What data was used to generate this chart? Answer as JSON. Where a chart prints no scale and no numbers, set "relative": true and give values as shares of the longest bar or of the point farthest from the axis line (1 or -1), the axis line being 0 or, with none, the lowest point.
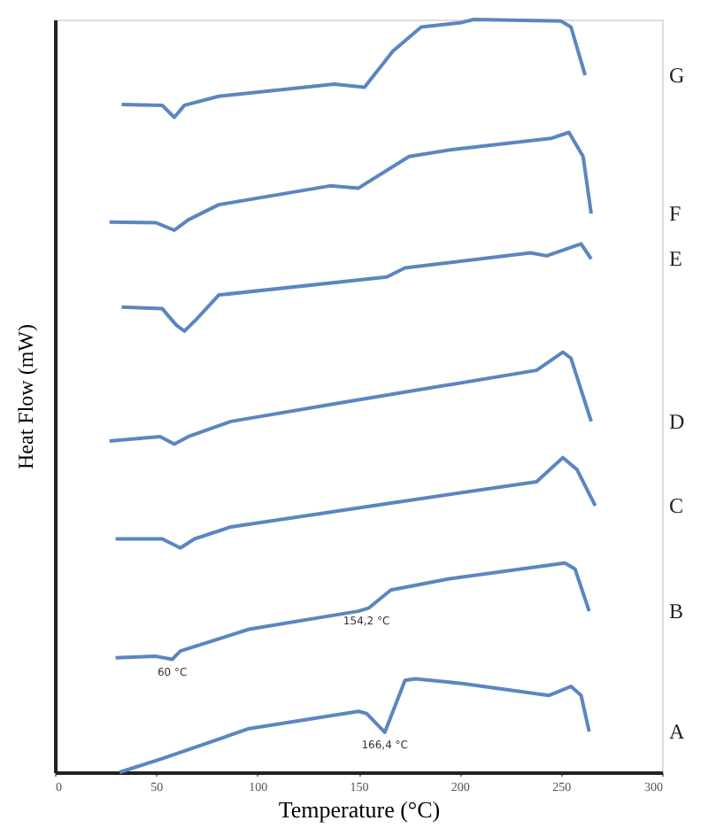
{
  "chart_data": {
    "type": "line",
    "relative": true,
    "xlabel": "Temperature (°C)",
    "ylabel": "Heat Flow (mW)",
    "xlim": [
      0,
      300
    ],
    "xticks": [
      0,
      50,
      100,
      150,
      200,
      250,
      300
    ],
    "tick_labels": "x",
    "grid": false,
    "legend": false,
    "marker": "none",
    "line_style": "solid",
    "series": [
      {
        "name": "G",
        "color": "#5b86bf",
        "x": [
          33,
          53,
          59,
          64,
          81,
          138,
          153,
          167,
          181,
          201,
          207,
          250,
          255,
          262
        ],
        "values": [
          0.887,
          0.886,
          0.87,
          0.886,
          0.898,
          0.914,
          0.91,
          0.958,
          0.99,
          0.996,
          1.0,
          0.998,
          0.99,
          0.926
        ]
      },
      {
        "name": "F",
        "color": "#5b86bf",
        "x": [
          27,
          50,
          59,
          66,
          81,
          136,
          150,
          175,
          196,
          245,
          254,
          261,
          265
        ],
        "values": [
          0.731,
          0.73,
          0.72,
          0.734,
          0.754,
          0.779,
          0.776,
          0.818,
          0.827,
          0.842,
          0.85,
          0.818,
          0.742
        ]
      },
      {
        "name": "E",
        "color": "#5b86bf",
        "x": [
          33,
          53,
          60,
          64,
          70,
          81,
          164,
          173,
          235,
          243,
          260,
          265
        ],
        "values": [
          0.618,
          0.616,
          0.594,
          0.586,
          0.602,
          0.634,
          0.658,
          0.67,
          0.69,
          0.686,
          0.702,
          0.682
        ]
      },
      {
        "name": "D",
        "color": "#5b86bf",
        "x": [
          27,
          52,
          59,
          66,
          87,
          144,
          238,
          251,
          255,
          265
        ],
        "values": [
          0.44,
          0.446,
          0.436,
          0.446,
          0.466,
          0.492,
          0.534,
          0.558,
          0.55,
          0.466
        ]
      },
      {
        "name": "C",
        "color": "#5b86bf",
        "x": [
          30,
          53,
          62,
          69,
          87,
          167,
          238,
          251,
          258,
          267
        ],
        "values": [
          0.31,
          0.31,
          0.298,
          0.31,
          0.326,
          0.358,
          0.386,
          0.418,
          0.402,
          0.354
        ]
      },
      {
        "name": "B",
        "color": "#5b86bf",
        "x": [
          30,
          50,
          58,
          62,
          96,
          150,
          155,
          166,
          195,
          252,
          257,
          264
        ],
        "values": [
          0.152,
          0.154,
          0.15,
          0.161,
          0.19,
          0.214,
          0.218,
          0.242,
          0.257,
          0.278,
          0.27,
          0.214
        ]
      },
      {
        "name": "A",
        "color": "#5b86bf",
        "x": [
          32,
          53,
          96,
          150,
          154,
          163,
          173,
          178,
          201,
          244,
          255,
          260,
          264
        ],
        "values": [
          0.0,
          0.018,
          0.058,
          0.081,
          0.078,
          0.053,
          0.122,
          0.124,
          0.118,
          0.102,
          0.114,
          0.102,
          0.054
        ]
      }
    ],
    "annotations": [
      {
        "text": "166,4 °C",
        "x": 163,
        "y": 0.053
      },
      {
        "text": "154,2 °C",
        "x": 154,
        "y": 0.218
      },
      {
        "text": "60 °C",
        "x": 58,
        "y": 0.15
      }
    ]
  }
}
